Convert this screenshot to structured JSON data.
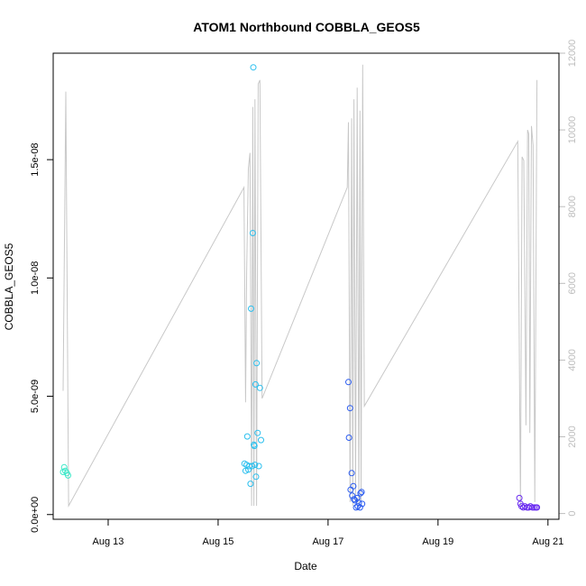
{
  "chart_data": {
    "type": "scatter",
    "title": "ATOM1 Northbound COBBLA_GEOS5",
    "xlabel": "Date",
    "ylabel": "COBBLA_GEOS5",
    "x_ticks": [
      {
        "label": "Aug 13",
        "day": 13
      },
      {
        "label": "Aug 15",
        "day": 15
      },
      {
        "label": "Aug 17",
        "day": 17
      },
      {
        "label": "Aug 19",
        "day": 19
      },
      {
        "label": "Aug 21",
        "day": 21
      }
    ],
    "xlim_days": [
      12.0,
      21.2
    ],
    "y_left": {
      "ylim": [
        -2e-10,
        1.95e-08
      ],
      "ticks": [
        {
          "label": "0.0e+00",
          "value": 0
        },
        {
          "label": "5.0e-09",
          "value": 5e-09
        },
        {
          "label": "1.0e-08",
          "value": 1e-08
        },
        {
          "label": "1.5e-08",
          "value": 1.5e-08
        }
      ]
    },
    "y_right": {
      "ylim": [
        -150,
        12000
      ],
      "ticks": [
        {
          "label": "0",
          "value": 0
        },
        {
          "label": "2000",
          "value": 2000
        },
        {
          "label": "4000",
          "value": 4000
        },
        {
          "label": "6000",
          "value": 6000
        },
        {
          "label": "8000",
          "value": 8000
        },
        {
          "label": "10000",
          "value": 10000
        },
        {
          "label": "12000",
          "value": 12000
        }
      ],
      "color": "#bdbdbd"
    },
    "grid": false,
    "legend": "none",
    "series": [
      {
        "kind": "line",
        "axis": "right",
        "color": "#c8c8c8",
        "points": [
          [
            12.18,
            3200
          ],
          [
            12.23,
            11000
          ],
          [
            12.28,
            200
          ],
          [
            15.47,
            8500
          ],
          [
            15.5,
            2900
          ],
          [
            15.52,
            6300
          ],
          [
            15.55,
            9000
          ],
          [
            15.58,
            9400
          ],
          [
            15.61,
            200
          ],
          [
            15.63,
            10600
          ],
          [
            15.65,
            200
          ],
          [
            15.67,
            10800
          ],
          [
            15.7,
            200
          ],
          [
            15.73,
            11200
          ],
          [
            15.76,
            11300
          ],
          [
            15.8,
            3000
          ],
          [
            17.35,
            8500
          ],
          [
            17.37,
            10200
          ],
          [
            17.4,
            300
          ],
          [
            17.43,
            10300
          ],
          [
            17.45,
            200
          ],
          [
            17.47,
            10800
          ],
          [
            17.5,
            300
          ],
          [
            17.53,
            11100
          ],
          [
            17.56,
            200
          ],
          [
            17.58,
            10500
          ],
          [
            17.6,
            300
          ],
          [
            17.63,
            11700
          ],
          [
            17.66,
            2800
          ],
          [
            20.45,
            9700
          ],
          [
            20.5,
            200
          ],
          [
            20.53,
            9300
          ],
          [
            20.56,
            9200
          ],
          [
            20.6,
            2300
          ],
          [
            20.63,
            10000
          ],
          [
            20.65,
            9900
          ],
          [
            20.67,
            2100
          ],
          [
            20.7,
            10100
          ],
          [
            20.73,
            9600
          ],
          [
            20.76,
            300
          ],
          [
            20.8,
            11300
          ]
        ]
      },
      {
        "kind": "points",
        "axis": "left",
        "color": "#3de8c8",
        "points": [
          [
            12.18,
            1.8e-09
          ],
          [
            12.2,
            2e-09
          ],
          [
            12.22,
            1.85e-09
          ],
          [
            12.25,
            1.75e-09
          ],
          [
            12.27,
            1.65e-09
          ]
        ]
      },
      {
        "kind": "points",
        "axis": "left",
        "color": "#2bbfee",
        "points": [
          [
            15.48,
            2.15e-09
          ],
          [
            15.5,
            1.85e-09
          ],
          [
            15.52,
            2.1e-09
          ],
          [
            15.53,
            3.3e-09
          ],
          [
            15.55,
            1.9e-09
          ],
          [
            15.57,
            2.05e-09
          ],
          [
            15.59,
            1.3e-09
          ],
          [
            15.6,
            8.7e-09
          ],
          [
            15.62,
            2.05e-09
          ],
          [
            15.63,
            1.19e-08
          ],
          [
            15.64,
            1.89e-08
          ],
          [
            15.65,
            2.95e-09
          ],
          [
            15.66,
            2.9e-09
          ],
          [
            15.67,
            2.1e-09
          ],
          [
            15.68,
            5.5e-09
          ],
          [
            15.69,
            1.6e-09
          ],
          [
            15.7,
            6.4e-09
          ],
          [
            15.72,
            3.45e-09
          ],
          [
            15.74,
            2.05e-09
          ],
          [
            15.76,
            5.35e-09
          ],
          [
            15.78,
            3.15e-09
          ]
        ]
      },
      {
        "kind": "points",
        "axis": "left",
        "color": "#2a5bf0",
        "points": [
          [
            17.37,
            5.6e-09
          ],
          [
            17.38,
            3.25e-09
          ],
          [
            17.4,
            4.5e-09
          ],
          [
            17.41,
            1.05e-09
          ],
          [
            17.43,
            1.75e-09
          ],
          [
            17.44,
            8e-10
          ],
          [
            17.46,
            1.2e-09
          ],
          [
            17.47,
            6.5e-10
          ],
          [
            17.49,
            6e-10
          ],
          [
            17.51,
            3e-10
          ],
          [
            17.53,
            7e-10
          ],
          [
            17.54,
            3.5e-10
          ],
          [
            17.56,
            5e-10
          ],
          [
            17.58,
            3e-10
          ],
          [
            17.59,
            9e-10
          ],
          [
            17.61,
            9.5e-10
          ],
          [
            17.62,
            4.5e-10
          ]
        ]
      },
      {
        "kind": "points",
        "axis": "left",
        "color": "#6a2bf0",
        "points": [
          [
            20.48,
            7e-10
          ],
          [
            20.5,
            4.5e-10
          ],
          [
            20.52,
            3.5e-10
          ],
          [
            20.55,
            3e-10
          ],
          [
            20.58,
            3.5e-10
          ],
          [
            20.62,
            3e-10
          ],
          [
            20.65,
            3e-10
          ],
          [
            20.68,
            3.5e-10
          ],
          [
            20.72,
            3e-10
          ],
          [
            20.75,
            3e-10
          ],
          [
            20.78,
            3e-10
          ],
          [
            20.8,
            3e-10
          ]
        ]
      }
    ]
  }
}
